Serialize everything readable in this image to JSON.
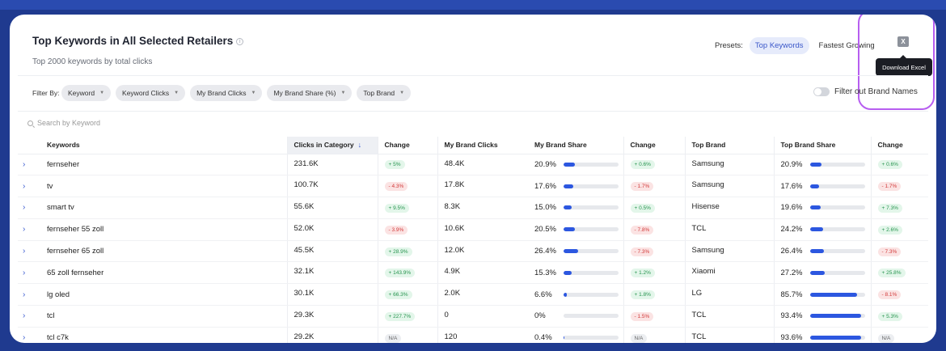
{
  "header": {
    "title": "Top Keywords in All Selected Retailers",
    "subtitle": "Top 2000 keywords by total clicks"
  },
  "presets": {
    "label": "Presets:",
    "items": [
      "Top Keywords",
      "Fastest Growing"
    ],
    "active": "Top Keywords"
  },
  "excel": {
    "icon": "excel-icon",
    "tooltip": "Download Excel"
  },
  "filters": {
    "label": "Filter By:",
    "chips": [
      "Keyword",
      "Keyword Clicks",
      "My Brand Clicks",
      "My Brand Share (%)",
      "Top Brand"
    ],
    "toggle_label": "Filter out Brand Names"
  },
  "search": {
    "placeholder": "Search by Keyword"
  },
  "table": {
    "columns": [
      "Keywords",
      "Clicks in Category",
      "Change",
      "My Brand Clicks",
      "My Brand Share",
      "Change",
      "Top Brand",
      "Top Brand Share",
      "Change"
    ],
    "rows": [
      {
        "keyword": "fernseher",
        "clicks": "231.6K",
        "change": "+ 5%",
        "change_type": "pos",
        "brand_clicks": "48.4K",
        "brand_share": "20.9%",
        "brand_share_v": 20.9,
        "share_change": "+ 0.6%",
        "share_change_type": "pos",
        "top_brand": "Samsung",
        "top_share": "20.9%",
        "top_share_v": 20.9,
        "top_change": "+ 0.6%",
        "top_change_type": "pos"
      },
      {
        "keyword": "tv",
        "clicks": "100.7K",
        "change": "- 4.3%",
        "change_type": "neg",
        "brand_clicks": "17.8K",
        "brand_share": "17.6%",
        "brand_share_v": 17.6,
        "share_change": "- 1.7%",
        "share_change_type": "neg",
        "top_brand": "Samsung",
        "top_share": "17.6%",
        "top_share_v": 17.6,
        "top_change": "- 1.7%",
        "top_change_type": "neg"
      },
      {
        "keyword": "smart tv",
        "clicks": "55.6K",
        "change": "+ 9.5%",
        "change_type": "pos",
        "brand_clicks": "8.3K",
        "brand_share": "15.0%",
        "brand_share_v": 15.0,
        "share_change": "+ 0.5%",
        "share_change_type": "pos",
        "top_brand": "Hisense",
        "top_share": "19.6%",
        "top_share_v": 19.6,
        "top_change": "+ 7.3%",
        "top_change_type": "pos"
      },
      {
        "keyword": "fernseher 55 zoll",
        "clicks": "52.0K",
        "change": "- 3.9%",
        "change_type": "neg",
        "brand_clicks": "10.6K",
        "brand_share": "20.5%",
        "brand_share_v": 20.5,
        "share_change": "- 7.8%",
        "share_change_type": "neg",
        "top_brand": "TCL",
        "top_share": "24.2%",
        "top_share_v": 24.2,
        "top_change": "+ 2.6%",
        "top_change_type": "pos"
      },
      {
        "keyword": "fernseher 65 zoll",
        "clicks": "45.5K",
        "change": "+ 28.9%",
        "change_type": "pos",
        "brand_clicks": "12.0K",
        "brand_share": "26.4%",
        "brand_share_v": 26.4,
        "share_change": "- 7.3%",
        "share_change_type": "neg",
        "top_brand": "Samsung",
        "top_share": "26.4%",
        "top_share_v": 26.4,
        "top_change": "- 7.3%",
        "top_change_type": "neg"
      },
      {
        "keyword": "65 zoll fernseher",
        "clicks": "32.1K",
        "change": "+ 143.9%",
        "change_type": "pos",
        "brand_clicks": "4.9K",
        "brand_share": "15.3%",
        "brand_share_v": 15.3,
        "share_change": "+ 1.2%",
        "share_change_type": "pos",
        "top_brand": "Xiaomi",
        "top_share": "27.2%",
        "top_share_v": 27.2,
        "top_change": "+ 25.8%",
        "top_change_type": "pos"
      },
      {
        "keyword": "lg oled",
        "clicks": "30.1K",
        "change": "+ 66.3%",
        "change_type": "pos",
        "brand_clicks": "2.0K",
        "brand_share": "6.6%",
        "brand_share_v": 6.6,
        "share_change": "+ 1.8%",
        "share_change_type": "pos",
        "top_brand": "LG",
        "top_share": "85.7%",
        "top_share_v": 85.7,
        "top_change": "- 8.1%",
        "top_change_type": "neg"
      },
      {
        "keyword": "tcl",
        "clicks": "29.3K",
        "change": "+ 227.7%",
        "change_type": "pos",
        "brand_clicks": "0",
        "brand_share": "0%",
        "brand_share_v": 0,
        "share_change": "- 1.5%",
        "share_change_type": "neg",
        "top_brand": "TCL",
        "top_share": "93.4%",
        "top_share_v": 93.4,
        "top_change": "+ 5.3%",
        "top_change_type": "pos"
      },
      {
        "keyword": "tcl c7k",
        "clicks": "29.2K",
        "change": "N/A",
        "change_type": "na",
        "brand_clicks": "120",
        "brand_share": "0.4%",
        "brand_share_v": 0.4,
        "share_change": "N/A",
        "share_change_type": "na",
        "top_brand": "TCL",
        "top_share": "93.6%",
        "top_share_v": 93.6,
        "top_change": "N/A",
        "top_change_type": "na"
      }
    ]
  },
  "colors": {
    "accent": "#2c57e0",
    "highlight": "#b75ef0",
    "positive": "#27944f",
    "negative": "#d23b3b"
  }
}
